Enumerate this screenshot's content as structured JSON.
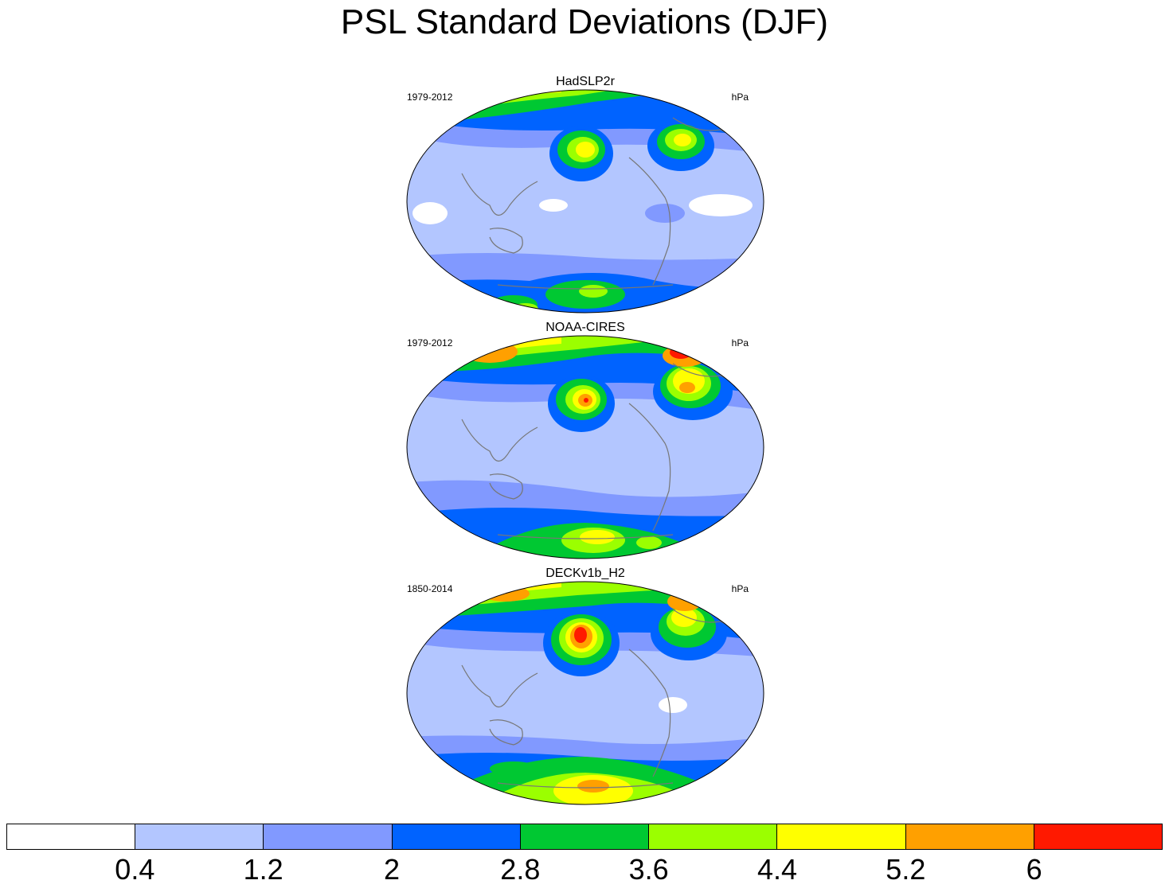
{
  "title": "PSL Standard Deviations (DJF)",
  "panels": [
    {
      "name": "HadSLP2r",
      "period": "1979-2012",
      "units": "hPa"
    },
    {
      "name": "NOAA-CIRES",
      "period": "1979-2012",
      "units": "hPa"
    },
    {
      "name": "DECKv1b_H2",
      "period": "1850-2014",
      "units": "hPa"
    }
  ],
  "colorbar": {
    "colors": [
      "#ffffff",
      "#b3c6ff",
      "#8199ff",
      "#0063ff",
      "#00c832",
      "#9bff00",
      "#ffff00",
      "#ffa000",
      "#ff1900"
    ],
    "labels": [
      "0.4",
      "1.2",
      "2",
      "2.8",
      "3.6",
      "4.4",
      "5.2",
      "6"
    ]
  }
}
